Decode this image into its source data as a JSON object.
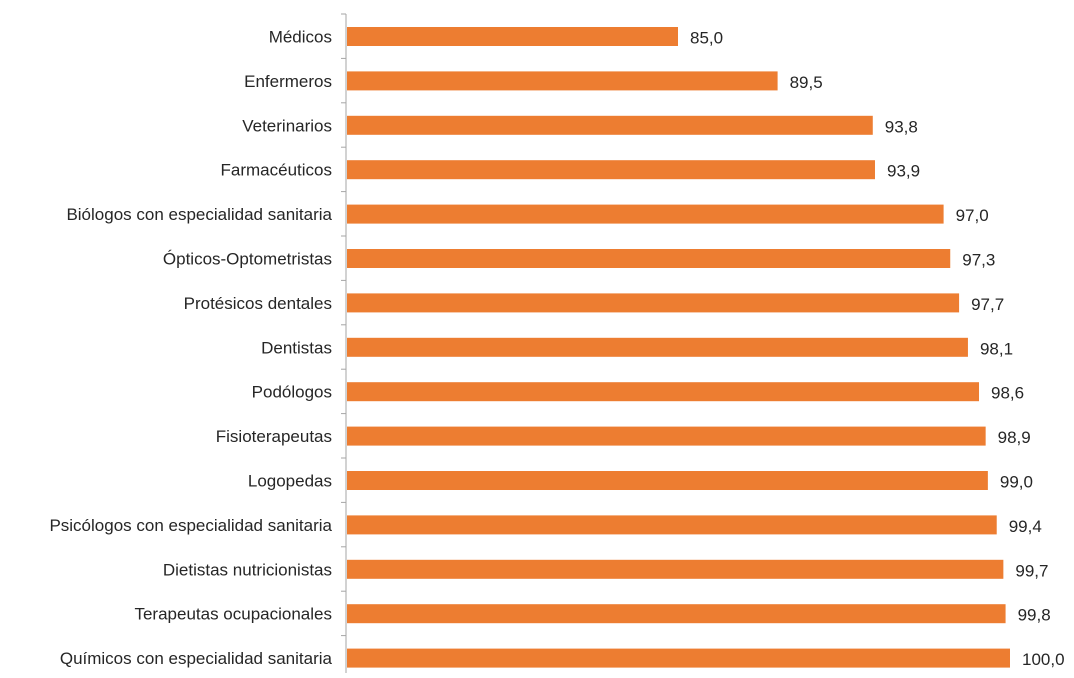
{
  "chart_data": {
    "type": "bar",
    "orientation": "horizontal",
    "title": "",
    "xlabel": "",
    "ylabel": "",
    "grid": false,
    "legend": "none",
    "bar_color": "#ED7D31",
    "axis_color": "#A6A6A6",
    "text_color": "#262626",
    "categories": [
      "Médicos",
      "Enfermeros",
      "Veterinarios",
      "Farmacéuticos",
      "Biólogos con especialidad sanitaria",
      "Ópticos-Optometristas",
      "Protésicos dentales",
      "Dentistas",
      "Podólogos",
      "Fisioterapeutas",
      "Logopedas",
      "Psicólogos con especialidad sanitaria",
      "Dietistas nutricionistas",
      "Terapeutas ocupacionales",
      "Químicos con especialidad sanitaria"
    ],
    "values": [
      85.0,
      89.5,
      93.8,
      93.9,
      97.0,
      97.3,
      97.7,
      98.1,
      98.6,
      98.9,
      99.0,
      99.4,
      99.7,
      99.8,
      100.0
    ],
    "value_labels": [
      "85,0",
      "89,5",
      "93,8",
      "93,9",
      "97,0",
      "97,3",
      "97,7",
      "98,1",
      "98,6",
      "98,9",
      "99,0",
      "99,4",
      "99,7",
      "99,8",
      "100,0"
    ],
    "xlim": [
      70,
      100
    ]
  }
}
